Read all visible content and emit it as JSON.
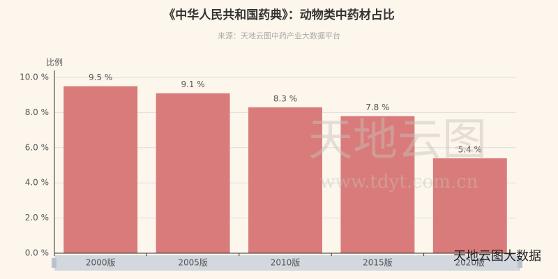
{
  "chart_data": {
    "type": "bar",
    "title": "《中华人民共和国药典》：动物类中药材占比",
    "subtitle": "来源：天地云图中药产业大数据平台",
    "y_label": "比例",
    "categories": [
      "2000版",
      "2005版",
      "2010版",
      "2015版",
      "2020版"
    ],
    "values": [
      9.5,
      9.1,
      8.3,
      7.8,
      5.4
    ],
    "value_labels": [
      "9.5 %",
      "9.1 %",
      "8.3 %",
      "7.8 %",
      "5.4 %"
    ],
    "color": "#d97b7a",
    "ylim": [
      0,
      10
    ],
    "yticks": [
      {
        "value": 0,
        "label": "0.0 %"
      },
      {
        "value": 2,
        "label": "2.0 %"
      },
      {
        "value": 4,
        "label": "4.0 %"
      },
      {
        "value": 6,
        "label": "6.0 %"
      },
      {
        "value": 8,
        "label": "8.0 %"
      },
      {
        "value": 10,
        "label": "10.0 %"
      }
    ],
    "grid": true,
    "watermark": [
      "天地云图",
      "www.tdyt.com.cn"
    ],
    "badge": "天地云图大数据"
  }
}
